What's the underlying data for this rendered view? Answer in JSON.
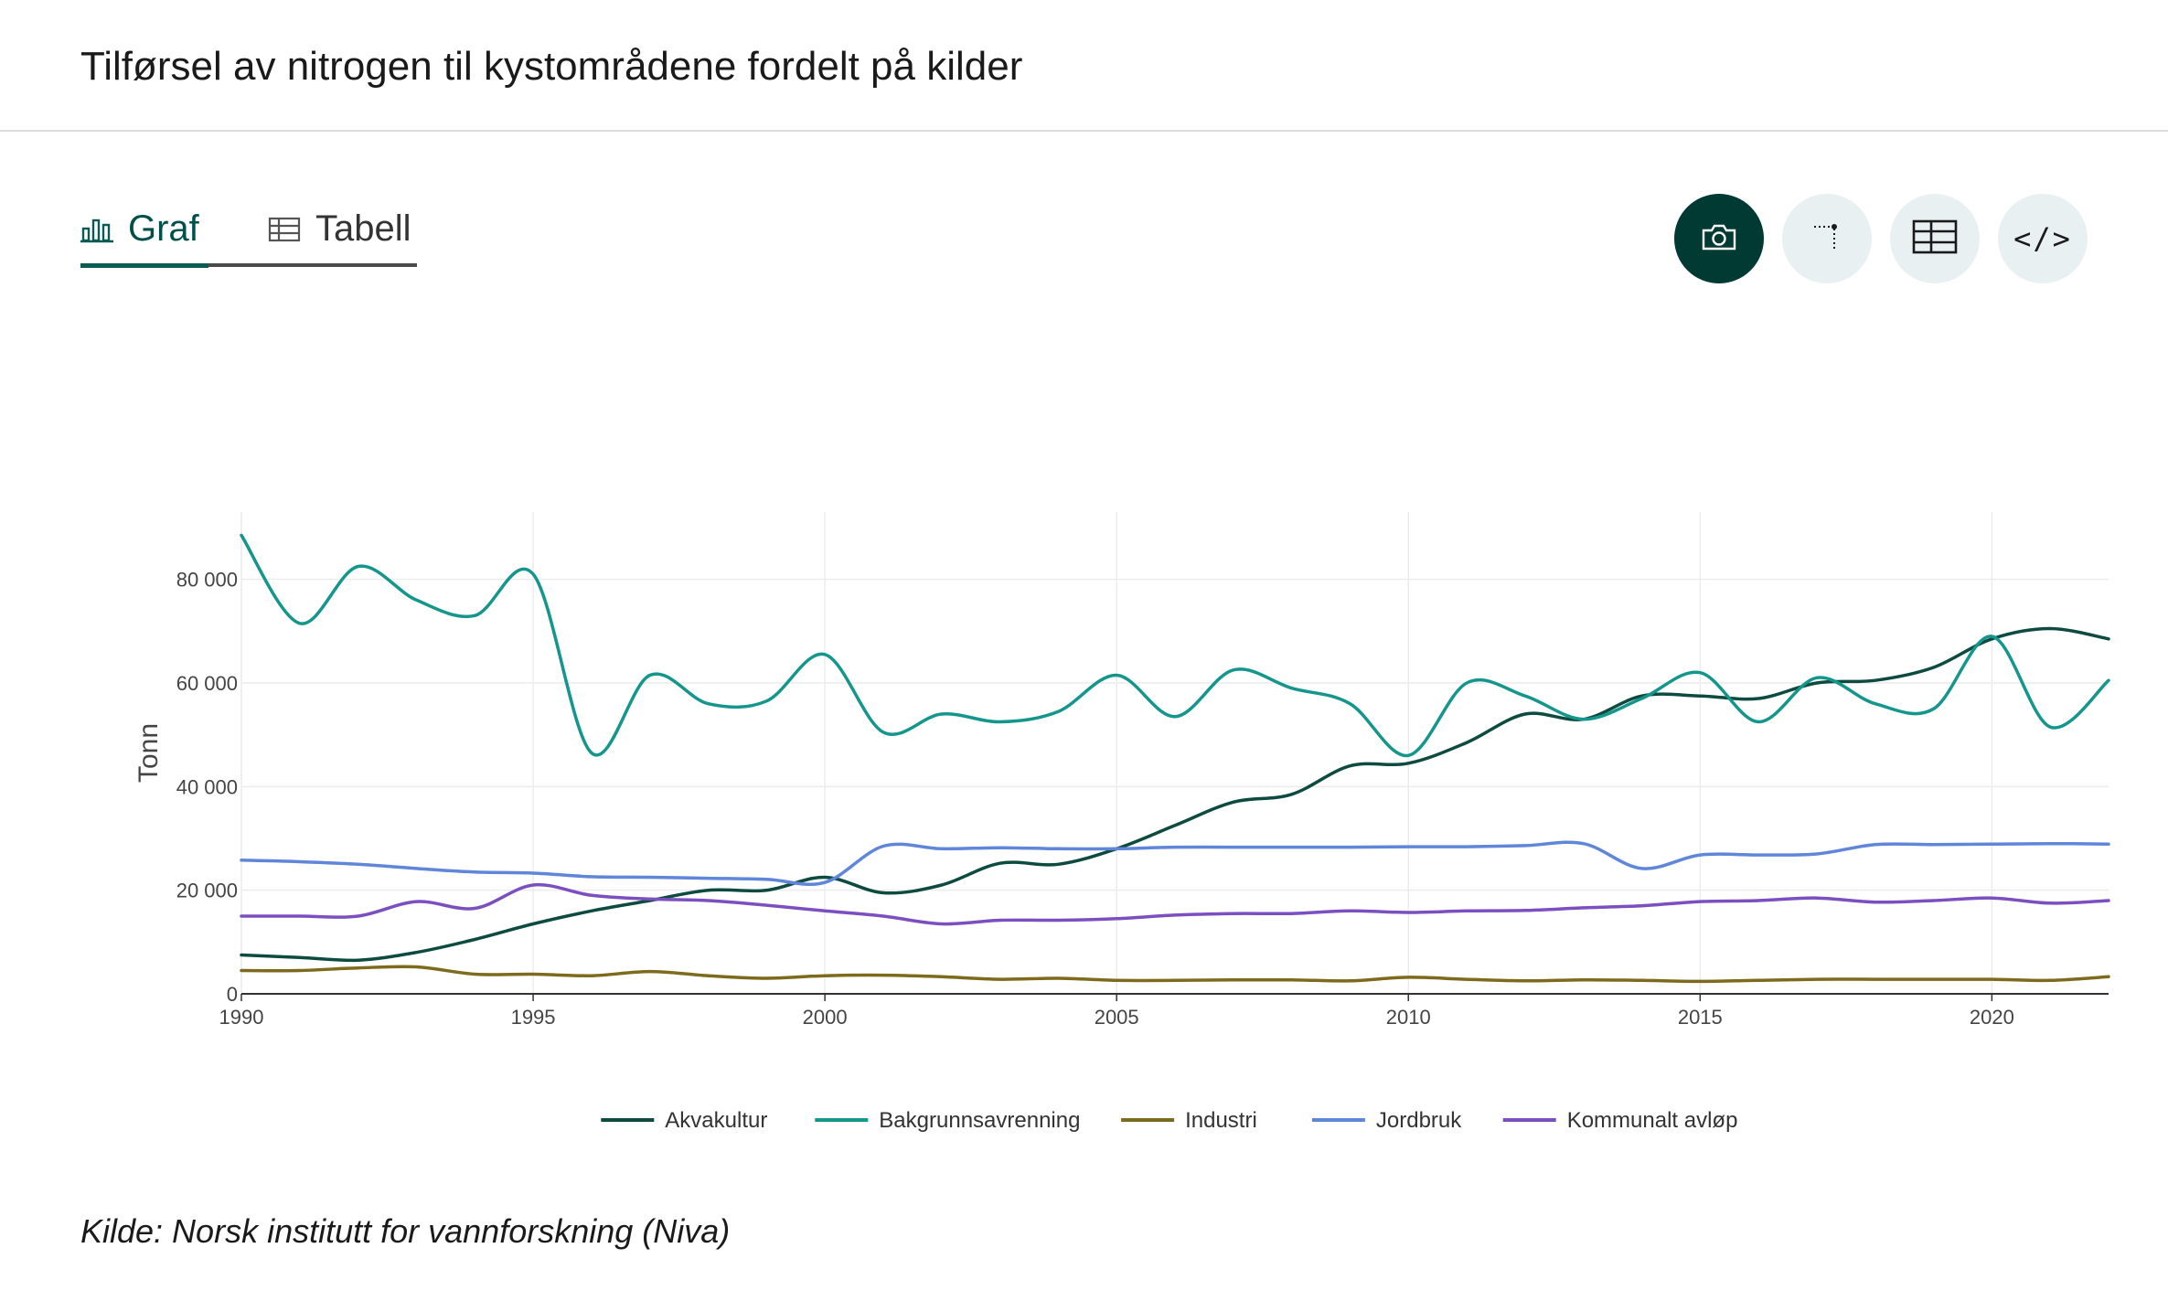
{
  "header": {
    "title": "Tilførsel av nitrogen til kystområdene fordelt på kilder"
  },
  "tabs": [
    {
      "label": "Graf",
      "active": true,
      "icon": "bar-chart-icon"
    },
    {
      "label": "Tabell",
      "active": false,
      "icon": "table-icon"
    }
  ],
  "actions": [
    {
      "name": "download-image-button",
      "icon": "camera-icon"
    },
    {
      "name": "axis-toggle-button",
      "icon": "axis-icon"
    },
    {
      "name": "show-table-button",
      "icon": "table-icon"
    },
    {
      "name": "embed-code-button",
      "icon": "code-icon",
      "glyph": "</>"
    }
  ],
  "colors": {
    "accent": "#003a33",
    "Akvakultur": "#0d4a40",
    "Bakgrunnsavrenning": "#14968c",
    "Industri": "#7d6a1c",
    "Jordbruk": "#5f86d8",
    "Kommunalt avløp": "#7b4fbf"
  },
  "chart_data": {
    "type": "line",
    "title": "",
    "xlabel": "",
    "ylabel": "Tonn",
    "x": [
      1990,
      1991,
      1992,
      1993,
      1994,
      1995,
      1996,
      1997,
      1998,
      1999,
      2000,
      2001,
      2002,
      2003,
      2004,
      2005,
      2006,
      2007,
      2008,
      2009,
      2010,
      2011,
      2012,
      2013,
      2014,
      2015,
      2016,
      2017,
      2018,
      2019,
      2020,
      2021,
      2022
    ],
    "xlim": [
      1990,
      2022
    ],
    "ylim": [
      0,
      93000
    ],
    "x_ticks": [
      1990,
      1995,
      2000,
      2005,
      2010,
      2015,
      2020
    ],
    "x_tick_labels": [
      "1990",
      "1995",
      "2000",
      "2005",
      "2010",
      "2015",
      "2020"
    ],
    "y_ticks": [
      0,
      20000,
      40000,
      60000,
      80000
    ],
    "y_tick_labels": [
      "0",
      "20 000",
      "40 000",
      "60 000",
      "80 000"
    ],
    "grid": true,
    "legend_position": "bottom-center",
    "series": [
      {
        "name": "Akvakultur",
        "values": [
          7500,
          7000,
          6500,
          8000,
          10500,
          13500,
          16000,
          18000,
          20000,
          20000,
          22500,
          19500,
          21000,
          25200,
          25000,
          28000,
          32500,
          37000,
          38500,
          44000,
          44500,
          48500,
          54000,
          53000,
          57500,
          57500,
          57000,
          60000,
          60500,
          63000,
          68500,
          70500,
          68500
        ]
      },
      {
        "name": "Bakgrunnsavrenning",
        "values": [
          88500,
          71500,
          82500,
          76000,
          73000,
          81000,
          46500,
          61500,
          56000,
          56500,
          65500,
          50500,
          54000,
          52500,
          54500,
          61500,
          53500,
          62500,
          59000,
          56000,
          46000,
          60000,
          57500,
          53000,
          57000,
          62000,
          52500,
          61000,
          56000,
          55000,
          69000,
          51500,
          60500
        ]
      },
      {
        "name": "Industri",
        "values": [
          4500,
          4500,
          5000,
          5200,
          3800,
          3800,
          3500,
          4300,
          3500,
          3000,
          3500,
          3600,
          3300,
          2800,
          3000,
          2600,
          2600,
          2700,
          2700,
          2500,
          3200,
          2800,
          2500,
          2700,
          2600,
          2400,
          2600,
          2800,
          2800,
          2800,
          2800,
          2600,
          3300
        ]
      },
      {
        "name": "Jordbruk",
        "values": [
          25800,
          25500,
          25000,
          24200,
          23500,
          23300,
          22600,
          22500,
          22300,
          22100,
          21500,
          28500,
          28000,
          28200,
          28000,
          28000,
          28300,
          28300,
          28300,
          28300,
          28400,
          28400,
          28600,
          29000,
          24200,
          26800,
          26800,
          27000,
          28800,
          28800,
          28900,
          29000,
          28900
        ]
      },
      {
        "name": "Kommunalt avløp",
        "values": [
          15000,
          15000,
          15000,
          17800,
          16500,
          21000,
          19000,
          18300,
          18000,
          17100,
          16000,
          15000,
          13500,
          14200,
          14200,
          14500,
          15200,
          15500,
          15500,
          16000,
          15700,
          16000,
          16100,
          16600,
          17000,
          17800,
          18000,
          18500,
          17700,
          18000,
          18500,
          17500,
          18000
        ]
      }
    ]
  },
  "source": "Kilde: Norsk institutt for vannforskning (Niva)"
}
